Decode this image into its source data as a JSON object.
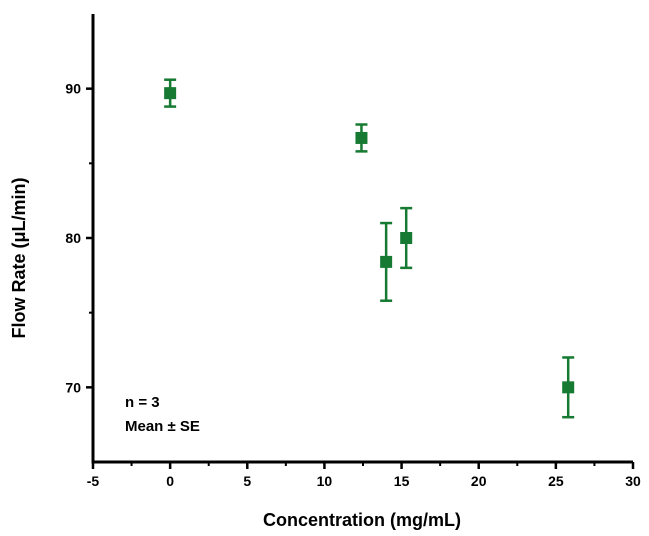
{
  "chart_data": {
    "type": "scatter",
    "xlabel": "Concentration (mg/mL)",
    "ylabel": "Flow Rate (μL/min)",
    "xlim": [
      -5,
      30
    ],
    "ylim": [
      65,
      95
    ],
    "xticks": [
      -5,
      0,
      5,
      10,
      15,
      20,
      25,
      30
    ],
    "yticks": [
      70,
      80,
      90
    ],
    "grid": false,
    "marker": "square",
    "color": "#167a32",
    "points": [
      {
        "x": 0,
        "y": 89.7,
        "err": 0.9
      },
      {
        "x": 12.4,
        "y": 86.7,
        "err": 0.9
      },
      {
        "x": 14.0,
        "y": 78.4,
        "err": 2.6
      },
      {
        "x": 15.3,
        "y": 80.0,
        "err": 2.0
      },
      {
        "x": 25.8,
        "y": 70.0,
        "err": 2.0
      }
    ],
    "annotations": [
      "n = 3",
      "Mean ± SE"
    ]
  }
}
